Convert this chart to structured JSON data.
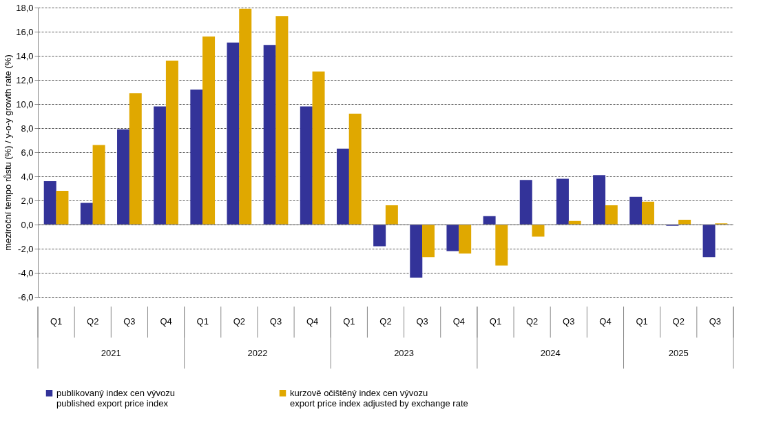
{
  "chart_data": {
    "type": "bar",
    "ylabel": "meziroční tempo růstu (%) / y-o-y growth rate (%)",
    "categories": [
      "Q1",
      "Q2",
      "Q3",
      "Q4",
      "Q1",
      "Q2",
      "Q3",
      "Q4",
      "Q1",
      "Q2",
      "Q3",
      "Q4",
      "Q1",
      "Q2",
      "Q3",
      "Q4",
      "Q1",
      "Q2",
      "Q3"
    ],
    "annotations": [
      "2021",
      "2022",
      "2023",
      "2024",
      "2025"
    ],
    "series": [
      {
        "name": "publikovaný index cen vývozu\npublished export price index",
        "color": "#333399",
        "values": [
          3.6,
          1.8,
          7.9,
          9.8,
          11.2,
          15.1,
          14.9,
          9.8,
          6.3,
          -1.8,
          -4.4,
          -2.2,
          0.7,
          3.7,
          3.8,
          4.1,
          2.3,
          -0.1,
          -2.7
        ]
      },
      {
        "name": "kurzově očištěný index cen vývozu\nexport price index adjusted by exchange rate",
        "color": "#e0a800",
        "values": [
          2.8,
          6.6,
          10.9,
          13.6,
          15.6,
          17.9,
          17.3,
          12.7,
          9.2,
          1.6,
          -2.7,
          -2.4,
          -3.4,
          -1.0,
          0.3,
          1.6,
          1.9,
          0.4,
          0.1
        ]
      }
    ],
    "ylim": [
      -6,
      18
    ],
    "yticks": [
      {
        "value": -6,
        "label": "-6,0"
      },
      {
        "value": -4,
        "label": "-4,0"
      },
      {
        "value": -2,
        "label": "-2,0"
      },
      {
        "value": 0,
        "label": "0,0"
      },
      {
        "value": 2,
        "label": "2,0"
      },
      {
        "value": 4,
        "label": "4,0"
      },
      {
        "value": 6,
        "label": "6,0"
      },
      {
        "value": 8,
        "label": "8,0"
      },
      {
        "value": 10,
        "label": "10,0"
      },
      {
        "value": 12,
        "label": "12,0"
      },
      {
        "value": 14,
        "label": "14,0"
      },
      {
        "value": 16,
        "label": "16,0"
      },
      {
        "value": 18,
        "label": "18,0"
      }
    ],
    "grid": "y",
    "legend": "bottom"
  }
}
